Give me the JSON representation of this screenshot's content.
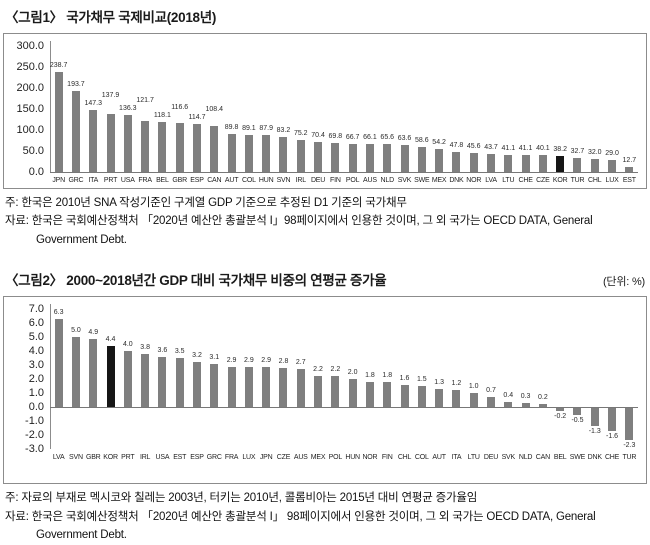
{
  "figure1": {
    "title": "〈그림1〉 국가채무 국제비교(2018년)",
    "note": "주: 한국은 2010년 SNA 작성기준인 구계열 GDP 기준으로 추정된 D1 기준의 국가채무",
    "source": "자료: 한국은 국회예산정책처 「2020년 예산안 총괄분석 I」98페이지에서 인용한 것이며, 그 외 국가는 OECD DATA, General Government Debt."
  },
  "figure2": {
    "title": "〈그림2〉 2000~2018년간 GDP 대비 국가채무 비중의 연평균 증가율",
    "unit": "(단위: %)",
    "note": "주: 자료의 부재로 멕시코와 칠레는 2003년, 터키는 2010년, 콜롬비아는 2015년 대비 연평균 증가율임",
    "source": "자료: 한국은 국회예산정책처 「2020년 예산안 총괄분석 I」 98페이지에서 인용한 것이며, 그 외 국가는 OECD DATA, General Government Debt."
  },
  "colors": {
    "bar": "#7f7f7f",
    "highlight": "#161616",
    "axis": "#8c8c8c",
    "zero_line": "#777777"
  },
  "chart_data": [
    {
      "type": "bar",
      "title": "국가채무 국제비교(2018년)",
      "xlabel": "",
      "ylabel": "",
      "ylim": [
        0,
        300
      ],
      "ytick_step": 50,
      "grid": false,
      "legend": "none",
      "highlight_category": "KOR",
      "categories": [
        "JPN",
        "GRC",
        "ITA",
        "PRT",
        "USA",
        "FRA",
        "BEL",
        "GBR",
        "ESP",
        "CAN",
        "AUT",
        "COL",
        "HUN",
        "SVN",
        "IRL",
        "DEU",
        "FIN",
        "POL",
        "AUS",
        "NLD",
        "SVK",
        "SWE",
        "MEX",
        "DNK",
        "NOR",
        "LVA",
        "LTU",
        "CHE",
        "CZE",
        "KOR",
        "TUR",
        "CHL",
        "LUX",
        "EST"
      ],
      "values": [
        238.7,
        193.7,
        147.3,
        137.9,
        136.3,
        121.7,
        118.1,
        116.6,
        114.7,
        108.4,
        89.8,
        89.1,
        87.9,
        83.2,
        75.2,
        70.4,
        69.8,
        66.7,
        66.1,
        65.6,
        63.6,
        58.6,
        54.2,
        47.8,
        45.6,
        43.7,
        41.1,
        41.1,
        40.1,
        38.2,
        32.7,
        32.0,
        29.0,
        12.7
      ]
    },
    {
      "type": "bar",
      "title": "2000~2018년간 GDP 대비 국가채무 비중의 연평균 증가율",
      "xlabel": "",
      "ylabel": "",
      "unit": "(단위: %)",
      "ylim": [
        -3,
        7
      ],
      "ytick_step": 1,
      "grid": false,
      "legend": "none",
      "highlight_category": "KOR",
      "categories": [
        "LVA",
        "SVN",
        "GBR",
        "KOR",
        "PRT",
        "IRL",
        "USA",
        "EST",
        "ESP",
        "GRC",
        "FRA",
        "LUX",
        "JPN",
        "CZE",
        "AUS",
        "MEX",
        "POL",
        "HUN",
        "NOR",
        "FIN",
        "CHL",
        "COL",
        "AUT",
        "ITA",
        "LTU",
        "DEU",
        "SVK",
        "NLD",
        "CAN",
        "BEL",
        "SWE",
        "DNK",
        "CHE",
        "TUR"
      ],
      "values": [
        6.3,
        5.0,
        4.9,
        4.4,
        4.0,
        3.8,
        3.6,
        3.5,
        3.2,
        3.1,
        2.9,
        2.9,
        2.9,
        2.8,
        2.7,
        2.2,
        2.2,
        2.0,
        1.8,
        1.8,
        1.6,
        1.5,
        1.3,
        1.2,
        1.0,
        0.7,
        0.4,
        0.3,
        0.2,
        -0.2,
        -0.5,
        -1.3,
        -1.6,
        -2.3
      ]
    }
  ]
}
